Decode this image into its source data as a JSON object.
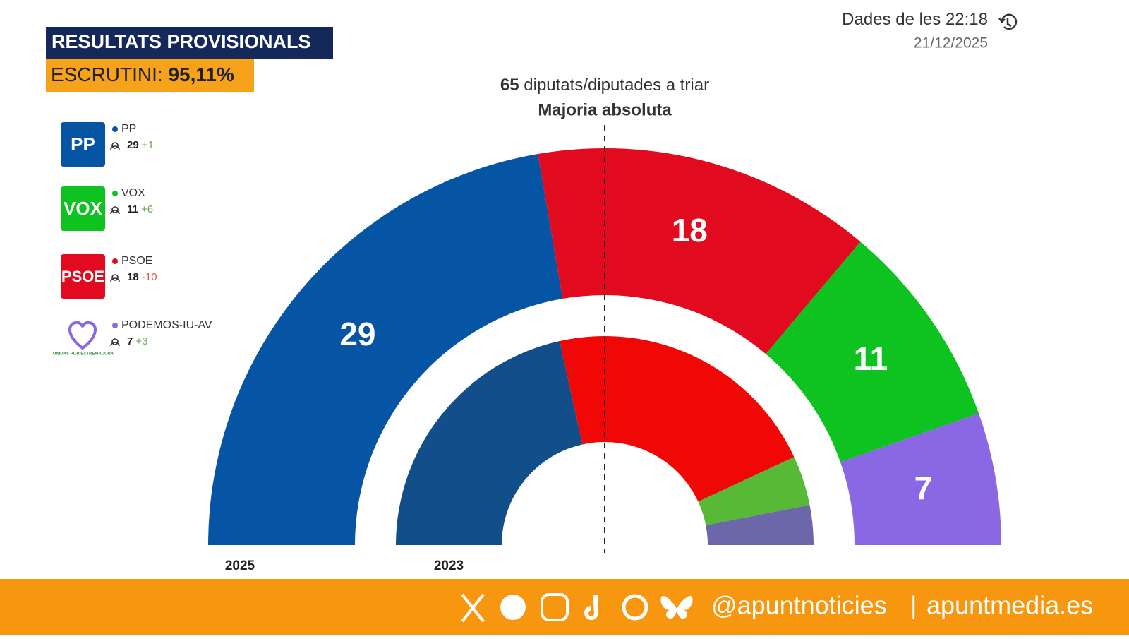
{
  "header": {
    "title": "RESULTATS PROVISIONALS",
    "count_label": "ESCRUTINI:",
    "count_value": "95,11%"
  },
  "update": {
    "label": "Dades de les",
    "time": "22:18",
    "date": "21/12/2025"
  },
  "chart_data": {
    "type": "parliament",
    "total_seats": 65,
    "total_text": "diputats/diputades a triar",
    "majority_label": "Majoria absoluta",
    "categories": [
      "PP",
      "PSOE",
      "VOX",
      "PODEMOS-IU-AV"
    ],
    "series": [
      {
        "name": "2025",
        "values": [
          29,
          18,
          11,
          7
        ],
        "colors": [
          "#0654a4",
          "#e20a1e",
          "#0ec320",
          "#8b68e3"
        ]
      },
      {
        "name": "2023",
        "values": [
          28,
          28,
          5,
          4
        ],
        "colors": [
          "#124f8a",
          "#f20707",
          "#57b935",
          "#6b67a8"
        ]
      }
    ],
    "legend": [
      {
        "name": "PP",
        "seats": 29,
        "change": "+1",
        "color": "#0654a4"
      },
      {
        "name": "VOX",
        "seats": 11,
        "change": "+6",
        "color": "#0ec320"
      },
      {
        "name": "PSOE",
        "seats": 18,
        "change": "-10",
        "color": "#e20a1e"
      },
      {
        "name": "PODEMOS-IU-AV",
        "seats": 7,
        "change": "+3",
        "color": "#8b68e3",
        "logo_text": "UNIDAS POR EXTREMADURA"
      }
    ]
  },
  "footer": {
    "handle": "@apuntnoticies",
    "separator": "|",
    "site": "apuntmedia.es"
  }
}
